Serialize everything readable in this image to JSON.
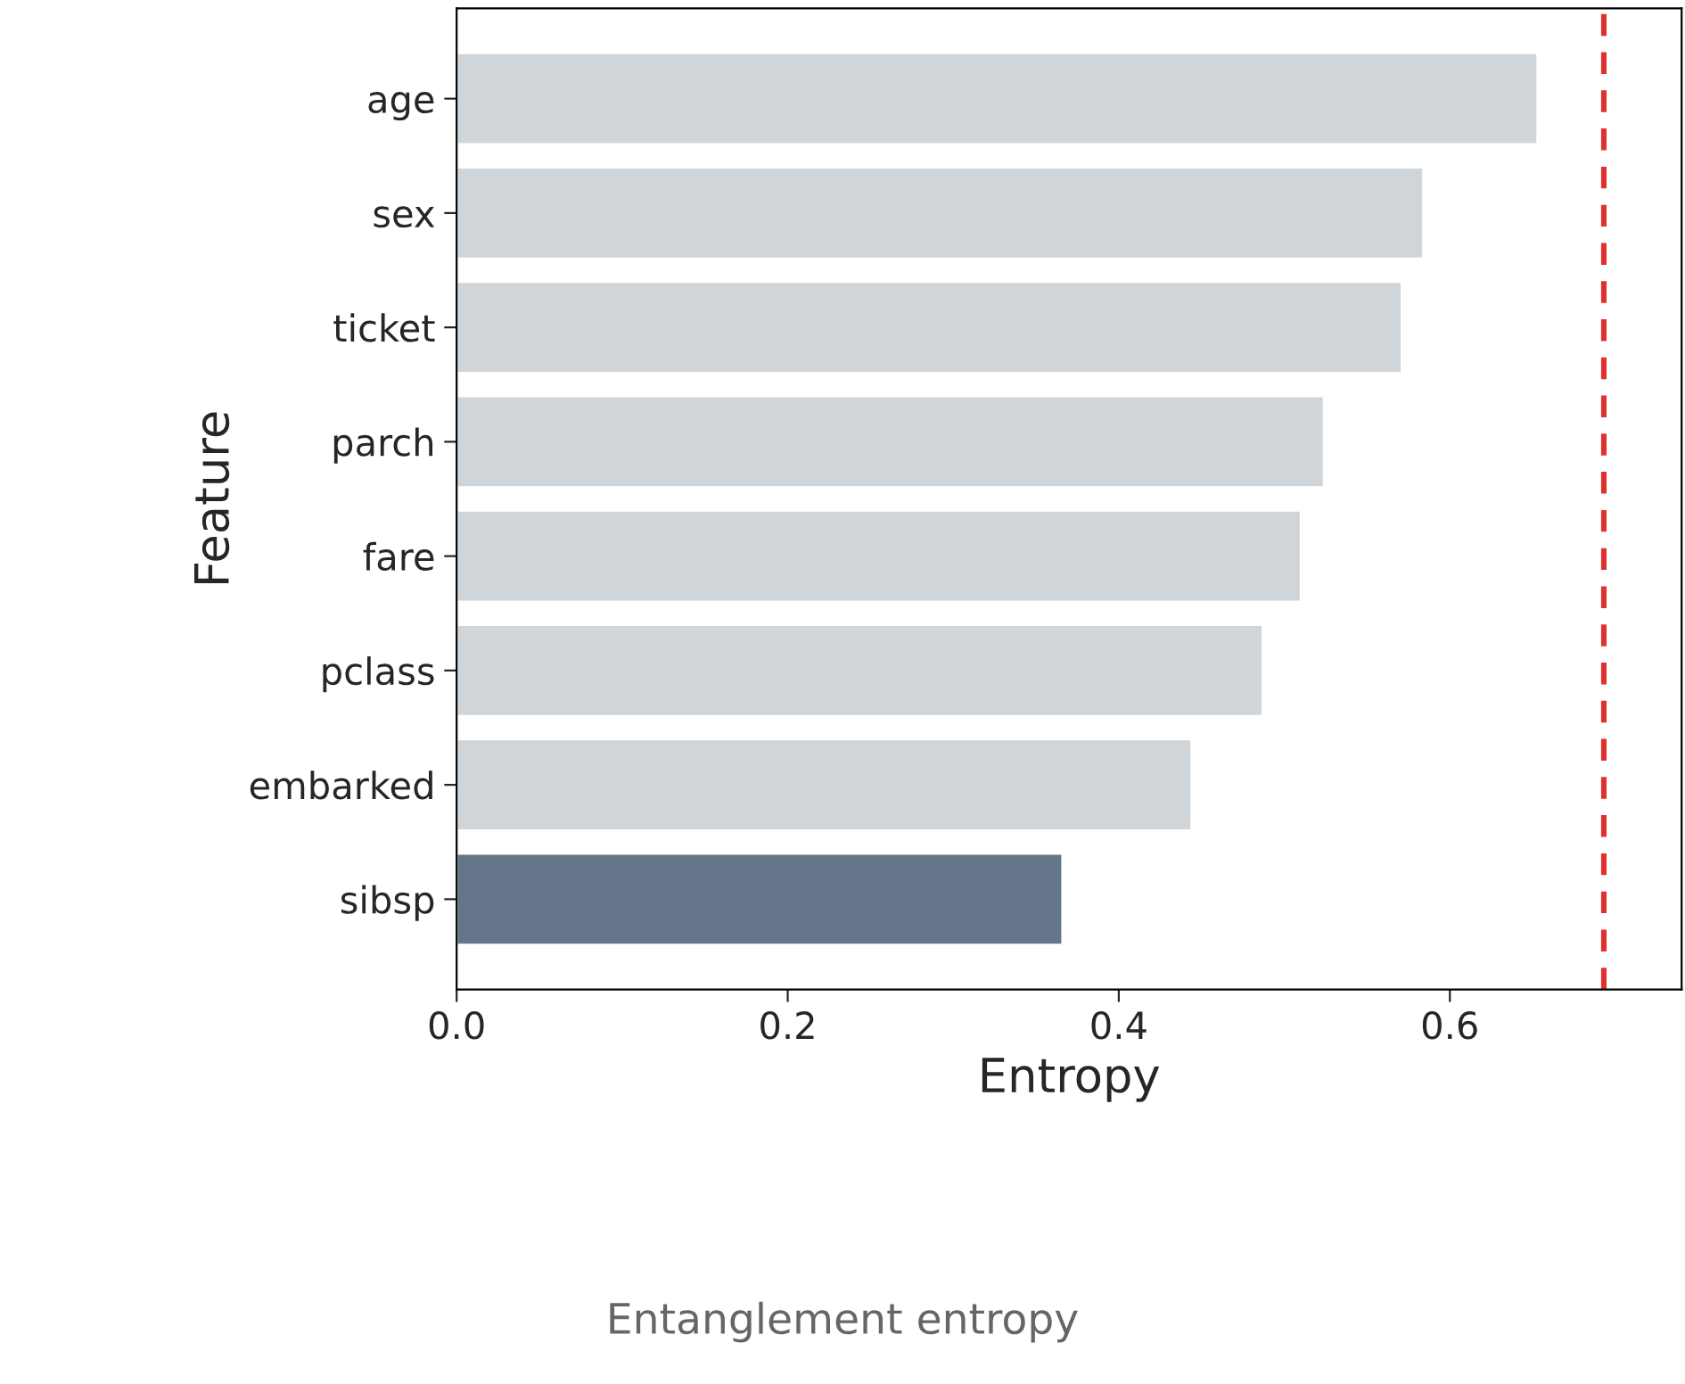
{
  "chart_data": {
    "type": "bar",
    "orientation": "horizontal",
    "xlabel": "Entropy",
    "ylabel": "Feature",
    "categories": [
      "age",
      "sex",
      "ticket",
      "parch",
      "fare",
      "pclass",
      "embarked",
      "sibsp"
    ],
    "values": [
      0.653,
      0.584,
      0.571,
      0.524,
      0.51,
      0.487,
      0.444,
      0.366
    ],
    "colors": [
      "#d0d5da",
      "#d0d5da",
      "#d0d5da",
      "#d0d5da",
      "#d0d5da",
      "#d0d5da",
      "#d0d5da",
      "#66768a"
    ],
    "xlim": [
      0,
      0.74
    ],
    "xticks": [
      {
        "value": 0,
        "label": "0.0"
      },
      0.2,
      0.4,
      0.6
    ],
    "ref_lines": [
      {
        "axis": "x",
        "value": 0.693,
        "color": "#e03030",
        "line_style": "dashed"
      }
    ],
    "annotations": [
      "Entanglement entropy"
    ],
    "grid": false,
    "legend": false
  }
}
